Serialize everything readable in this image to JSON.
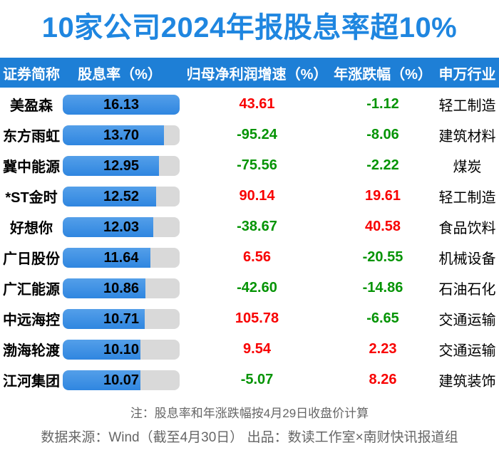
{
  "title": "10家公司2024年报股息率超10%",
  "colors": {
    "title_blue": "#1f86e0",
    "header_bg": "#1e7fd6",
    "bar_fill": "#3b8fe4",
    "bar_track": "#d9d9d9",
    "positive_red": "#f80000",
    "negative_green": "#059405"
  },
  "chart_data": {
    "type": "bar",
    "title": "10家公司2024年报股息率超10%",
    "orientation": "horizontal",
    "columns": [
      "证券简称",
      "股息率（%）",
      "归母净利润增速（%）",
      "年涨跌幅（%）",
      "申万行业"
    ],
    "bar_axis_max": 16.13,
    "rows": [
      {
        "name": "美盈森",
        "dividend_yield": 16.13,
        "profit_growth": 43.61,
        "year_change": -1.12,
        "industry": "轻工制造"
      },
      {
        "name": "东方雨虹",
        "dividend_yield": 13.7,
        "profit_growth": -95.24,
        "year_change": -8.06,
        "industry": "建筑材料"
      },
      {
        "name": "冀中能源",
        "dividend_yield": 12.95,
        "profit_growth": -75.56,
        "year_change": -2.22,
        "industry": "煤炭"
      },
      {
        "name": "*ST金时",
        "dividend_yield": 12.52,
        "profit_growth": 90.14,
        "year_change": 19.61,
        "industry": "轻工制造"
      },
      {
        "name": "好想你",
        "dividend_yield": 12.03,
        "profit_growth": -38.67,
        "year_change": 40.58,
        "industry": "食品饮料"
      },
      {
        "name": "广日股份",
        "dividend_yield": 11.64,
        "profit_growth": 6.56,
        "year_change": -20.55,
        "industry": "机械设备"
      },
      {
        "name": "广汇能源",
        "dividend_yield": 10.86,
        "profit_growth": -42.6,
        "year_change": -14.86,
        "industry": "石油石化"
      },
      {
        "name": "中远海控",
        "dividend_yield": 10.71,
        "profit_growth": 105.78,
        "year_change": -6.65,
        "industry": "交通运输"
      },
      {
        "name": "渤海轮渡",
        "dividend_yield": 10.1,
        "profit_growth": 9.54,
        "year_change": 2.23,
        "industry": "交通运输"
      },
      {
        "name": "江河集团",
        "dividend_yield": 10.07,
        "profit_growth": -5.07,
        "year_change": 8.26,
        "industry": "建筑装饰"
      }
    ]
  },
  "footer": {
    "note": "注：股息率和年涨跌幅按4月29日收盘价计算",
    "source": "数据来源：Wind（截至4月30日） 出品：数读工作室×南财快讯报道组"
  }
}
